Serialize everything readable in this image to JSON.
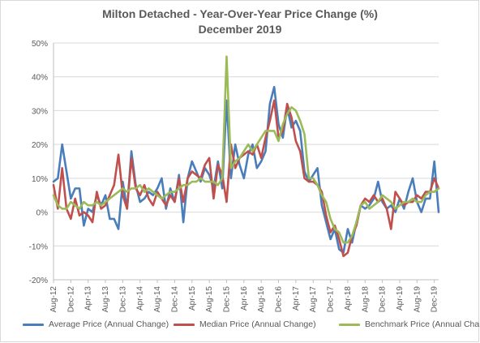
{
  "chart_data": {
    "type": "line",
    "title": "Milton Detached - Year-Over-Year Price Change (%)",
    "subtitle": "December 2019",
    "y_tick_labels": [
      "50%",
      "40%",
      "30%",
      "20%",
      "10%",
      "0%",
      "-10%",
      "-20%"
    ],
    "ylim": [
      -20,
      50
    ],
    "y_unit": "%",
    "x_tick_labels": [
      "Aug-12",
      "Dec-12",
      "Apr-13",
      "Aug-13",
      "Dec-13",
      "Apr-14",
      "Aug-14",
      "Dec-14",
      "Apr-15",
      "Aug-15",
      "Dec-15",
      "Apr-16",
      "Aug-16",
      "Dec-16",
      "Apr-17",
      "Aug-17",
      "Dec-17",
      "Apr-18",
      "Aug-18",
      "Dec-18",
      "Apr-19",
      "Aug-19",
      "Dec-19"
    ],
    "x_start": "Aug-12",
    "x_end": "Dec-19",
    "grid": true,
    "legend_position": "bottom",
    "series": [
      {
        "name": "Average Price (Annual Change)",
        "color": "#4a7ebb",
        "values": [
          9,
          10,
          20,
          12,
          4,
          7,
          7,
          -4,
          1,
          0,
          5,
          2,
          5,
          -2,
          -2,
          -5,
          9,
          1,
          18,
          8,
          3,
          4,
          6,
          5,
          7,
          10,
          1,
          7,
          3,
          11,
          -3,
          10,
          15,
          12,
          9,
          13,
          11,
          7,
          15,
          7,
          33,
          10,
          20,
          14,
          10,
          17,
          20,
          13,
          15,
          18,
          32,
          37,
          26,
          22,
          31,
          25,
          27,
          24,
          12,
          9,
          11,
          13,
          2,
          -3,
          -8,
          -5,
          -11,
          -12,
          -5,
          -9,
          -3,
          2,
          1,
          2,
          4,
          9,
          3,
          1,
          2,
          0,
          4,
          1,
          6,
          10,
          3,
          0,
          4,
          4,
          15,
          0
        ]
      },
      {
        "name": "Median Price (Annual Change)",
        "color": "#c0504d",
        "values": [
          8,
          1,
          13,
          1,
          -2,
          4,
          -1,
          0,
          -1,
          -3,
          6,
          1,
          2,
          5,
          8,
          17,
          5,
          1,
          16,
          7,
          5,
          8,
          4,
          2,
          6,
          4,
          2,
          5,
          3,
          10,
          3,
          10,
          12,
          11,
          10,
          14,
          16,
          4,
          14,
          11,
          3,
          20,
          13,
          16,
          17,
          18,
          17,
          20,
          16,
          22,
          27,
          33,
          22,
          24,
          32,
          28,
          21,
          18,
          10,
          9,
          9,
          8,
          6,
          -1,
          -6,
          -4,
          -8,
          -13,
          -12,
          -7,
          -4,
          2,
          4,
          3,
          5,
          3,
          4,
          1,
          -5,
          6,
          4,
          2,
          3,
          3,
          5,
          4,
          6,
          6,
          10,
          7
        ]
      },
      {
        "name": "Benchmark Price (Annual Change)",
        "color": "#9bbb59",
        "values": [
          5,
          2,
          1,
          1,
          3,
          2,
          1,
          3,
          2,
          2,
          3,
          2,
          3,
          4,
          5,
          6,
          7,
          6,
          7,
          7,
          8,
          6,
          7,
          6,
          5,
          4,
          5,
          6,
          6,
          7,
          8,
          8,
          9,
          9,
          10,
          9,
          9,
          9,
          8,
          10,
          46,
          13,
          15,
          16,
          18,
          20,
          18,
          20,
          22,
          24,
          24,
          24,
          21,
          26,
          29,
          31,
          30,
          27,
          23,
          10,
          10,
          8,
          5,
          3,
          -2,
          -5,
          -6,
          -9,
          -9,
          -7,
          -3,
          2,
          3,
          1,
          2,
          3,
          5,
          4,
          3,
          1,
          2,
          3,
          3,
          4,
          3,
          3,
          5,
          6,
          6,
          7
        ]
      }
    ]
  }
}
